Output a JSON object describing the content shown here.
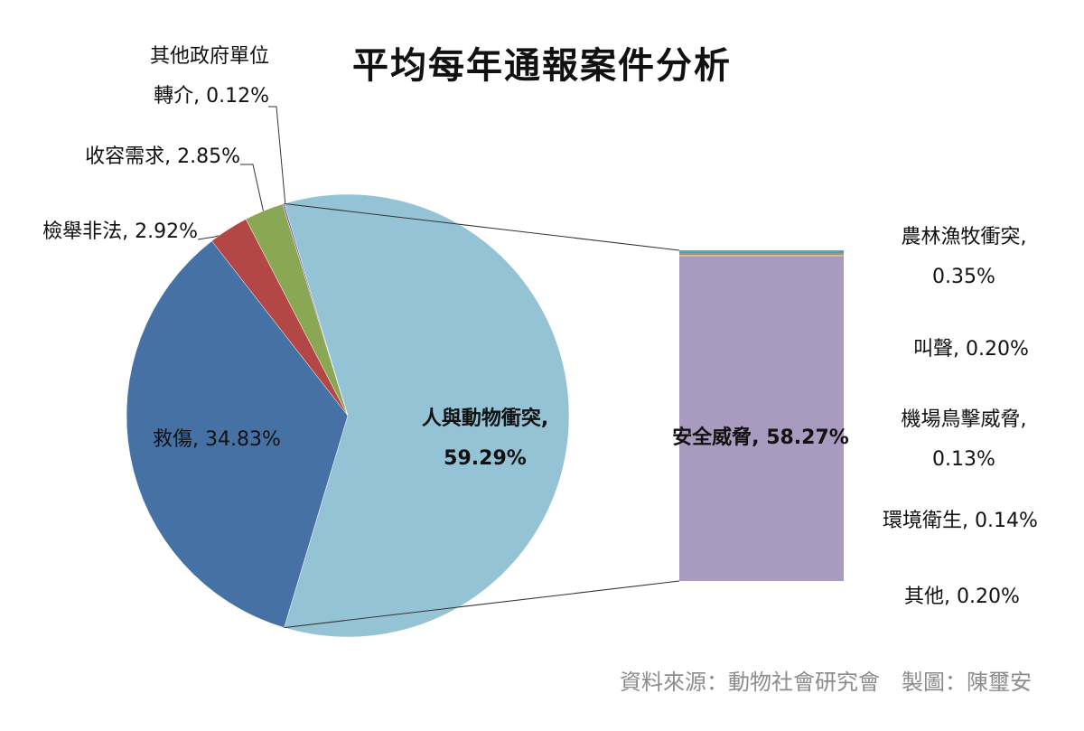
{
  "chart_data": {
    "type": "pie",
    "title": "平均每年通報案件分析",
    "source": "資料來源：動物社會研究會　製圖：陳璽安",
    "pie": {
      "categories": [
        "人與動物衝突,",
        "救傷,",
        "檢舉非法,",
        "收容需求,",
        "其他政府單位轉介,"
      ],
      "values": [
        59.29,
        34.83,
        2.92,
        2.85,
        0.12
      ],
      "value_labels": [
        "59.29%",
        "34.83%",
        "2.92%",
        "2.85%",
        "0.12%"
      ],
      "colors": [
        "#93c3d5",
        "#4571a5",
        "#b24745",
        "#8aa753",
        "#7b5e9b"
      ]
    },
    "bar": {
      "categories": [
        "安全威脅,",
        "其他,",
        "環境衛生,",
        "機場鳥擊威脅,",
        "叫聲,",
        "農林漁牧衝突,"
      ],
      "values": [
        58.27,
        0.2,
        0.14,
        0.13,
        0.2,
        0.35
      ],
      "value_labels": [
        "58.27%",
        "0.20%",
        "0.14%",
        "0.13%",
        "0.20%",
        "0.35%"
      ],
      "colors": [
        "#a99bbf",
        "#d8c7a0",
        "#c0504d",
        "#9bbb59",
        "#8064a2",
        "#4bacc6"
      ]
    }
  }
}
